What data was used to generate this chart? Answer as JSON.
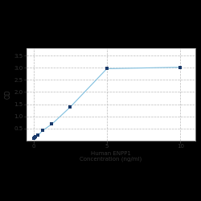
{
  "x": [
    0,
    0.078,
    0.156,
    0.313,
    0.625,
    1.25,
    2.5,
    5,
    10
  ],
  "y": [
    0.105,
    0.118,
    0.158,
    0.22,
    0.42,
    0.68,
    1.38,
    2.96,
    3.02
  ],
  "line_color": "#7fbfdf",
  "marker_color": "#1a3a6b",
  "marker": "s",
  "marker_size": 3.5,
  "xlabel_line1": "Human ENPP1",
  "xlabel_line2": "Concentration (ng/ml)",
  "ylabel": "OD",
  "xlim": [
    -0.5,
    11
  ],
  "ylim": [
    0,
    3.8
  ],
  "yticks": [
    0.5,
    1.0,
    1.5,
    2.0,
    2.5,
    3.0,
    3.5
  ],
  "xticks": [
    0,
    5,
    10
  ],
  "grid_color": "#bbbbbb",
  "plot_bg_color": "#ffffff",
  "fig_bg_color": "#000000",
  "xlabel_fontsize": 5.0,
  "ylabel_fontsize": 5.5,
  "tick_fontsize": 5.0,
  "tick_color": "#333333",
  "spine_color": "#aaaaaa"
}
